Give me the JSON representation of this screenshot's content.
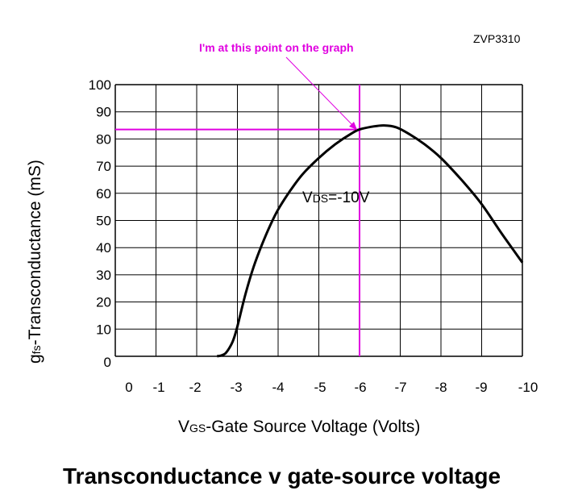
{
  "part_number": "ZVP3310",
  "chart_data": {
    "type": "line",
    "title": "Transconductance v gate-source voltage",
    "xlabel": {
      "main": "V",
      "subscript": "GS",
      "rest": "-Gate Source Voltage (Volts)"
    },
    "ylabel": {
      "main": "g",
      "subscript": "fs",
      "rest": "-Transconductance (mS)"
    },
    "x_ticks": [
      "0",
      "-1",
      "-2",
      "-3",
      "-4",
      "-5",
      "-6",
      "-7",
      "-8",
      "-9",
      "-10"
    ],
    "y_ticks": [
      "0",
      "10",
      "20",
      "30",
      "40",
      "50",
      "60",
      "70",
      "80",
      "90",
      "100"
    ],
    "xlim": [
      0,
      -10
    ],
    "ylim": [
      0,
      100
    ],
    "grid": true,
    "series": [
      {
        "label": {
          "main": "V",
          "subscript": "DS",
          "rest": "=-10V"
        },
        "color": "#000000",
        "x": [
          -2.5,
          -2.6,
          -2.7,
          -2.8,
          -2.9,
          -3.0,
          -3.2,
          -3.4,
          -3.6,
          -3.8,
          -4.0,
          -4.3,
          -4.6,
          -5.0,
          -5.4,
          -5.8,
          -6.0,
          -6.3,
          -6.6,
          -6.9,
          -7.2,
          -7.6,
          -8.0,
          -8.5,
          -9.0,
          -9.5,
          -10.0
        ],
        "y": [
          0,
          0.3,
          1,
          3,
          6,
          11,
          23,
          33,
          41,
          48,
          54,
          61,
          67,
          73,
          78,
          82,
          83.5,
          84.5,
          85,
          84.3,
          82,
          78,
          73,
          65,
          56,
          45,
          34.5
        ]
      }
    ],
    "annotation": {
      "text": "I'm at this point on the graph",
      "color": "#e000e0",
      "point": {
        "x": -6,
        "y": 83.5
      }
    }
  }
}
